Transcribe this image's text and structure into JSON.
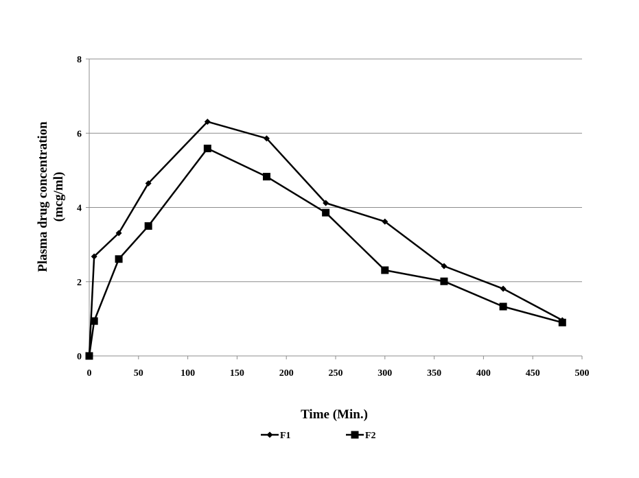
{
  "chart_data": {
    "type": "line",
    "xlabel": "Time (Min.)",
    "ylabel_line1": "Plasma drug concentration",
    "ylabel_line2": "(mcg/ml)",
    "xlim": [
      0,
      500
    ],
    "ylim": [
      0,
      8
    ],
    "x_ticks": [
      0,
      50,
      100,
      150,
      200,
      250,
      300,
      350,
      400,
      450,
      500
    ],
    "y_ticks": [
      0,
      2,
      4,
      6,
      8
    ],
    "grid": "horizontal",
    "legend_position": "bottom",
    "series": [
      {
        "name": "F1",
        "marker": "diamond",
        "color": "#000000",
        "x": [
          0,
          5,
          30,
          60,
          120,
          180,
          240,
          300,
          360,
          420,
          480
        ],
        "y": [
          0,
          2.68,
          3.31,
          4.65,
          6.31,
          5.86,
          4.12,
          3.62,
          2.42,
          1.81,
          0.96
        ]
      },
      {
        "name": "F2",
        "marker": "square",
        "color": "#000000",
        "x": [
          0,
          5,
          30,
          60,
          120,
          180,
          240,
          300,
          360,
          420,
          480
        ],
        "y": [
          0,
          0.94,
          2.61,
          3.5,
          5.59,
          4.83,
          3.86,
          2.31,
          2.01,
          1.33,
          0.9
        ]
      }
    ]
  }
}
